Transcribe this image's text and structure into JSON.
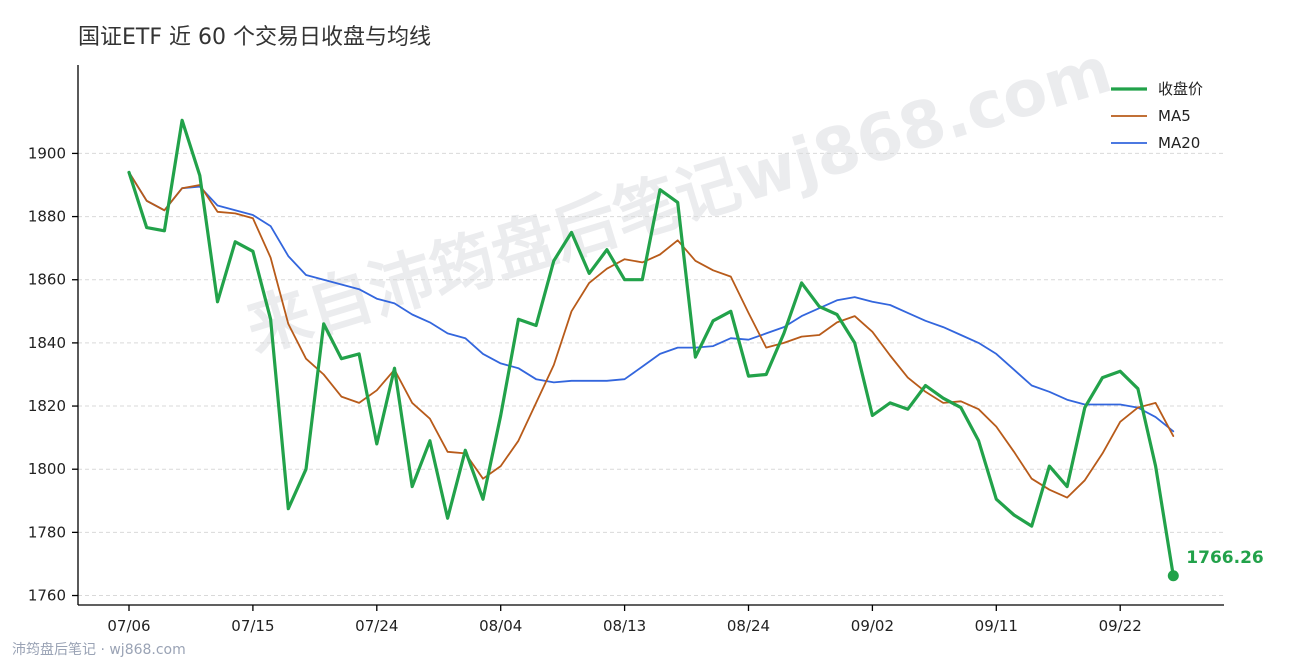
{
  "chart_data": {
    "type": "line",
    "title": "国证ETF 近 60 个交易日收盘与均线",
    "xlabel": "",
    "ylabel": "",
    "ylim": [
      1757,
      1928
    ],
    "yticks": [
      1760,
      1780,
      1800,
      1820,
      1840,
      1860,
      1880,
      1900
    ],
    "xticks": [
      {
        "index": 0,
        "label": "07/06"
      },
      {
        "index": 7,
        "label": "07/15"
      },
      {
        "index": 14,
        "label": "07/24"
      },
      {
        "index": 21,
        "label": "08/04"
      },
      {
        "index": 28,
        "label": "08/13"
      },
      {
        "index": 35,
        "label": "08/24"
      },
      {
        "index": 42,
        "label": "09/02"
      },
      {
        "index": 49,
        "label": "09/11"
      },
      {
        "index": 56,
        "label": "09/22"
      }
    ],
    "grid": "horizontal",
    "legend_position": "top-right",
    "series": [
      {
        "name": "收盘价",
        "color": "#22a24a",
        "values": [
          1894,
          1876.5,
          1875.5,
          1910.5,
          1893,
          1853,
          1872,
          1869,
          1847.5,
          1787.5,
          1800,
          1846,
          1835,
          1836.5,
          1808,
          1832,
          1794.5,
          1809,
          1784.5,
          1806,
          1790.5,
          1817,
          1847.5,
          1845.5,
          1866,
          1875,
          1862,
          1869.5,
          1860,
          1860,
          1888.5,
          1884.5,
          1835.5,
          1847,
          1850,
          1829.5,
          1830,
          1843,
          1859,
          1851.5,
          1849,
          1840,
          1817,
          1821,
          1819,
          1826.5,
          1822.5,
          1819.5,
          1809,
          1790.5,
          1785.5,
          1782,
          1801,
          1794.5,
          1819.5,
          1829,
          1831,
          1825.5,
          1801,
          1766.26
        ]
      },
      {
        "name": "MA5",
        "color": "#b85b1a",
        "values": [
          1894,
          1885,
          1882,
          1889,
          1890,
          1881.5,
          1881,
          1879.5,
          1867,
          1846,
          1835,
          1830,
          1823,
          1821,
          1825,
          1831.5,
          1821,
          1816,
          1805.5,
          1805,
          1797,
          1801,
          1809,
          1821,
          1833,
          1850,
          1859,
          1863.5,
          1866.5,
          1865.5,
          1868,
          1872.5,
          1866,
          1863,
          1861,
          1849.5,
          1838.5,
          1840,
          1842,
          1842.5,
          1846.5,
          1848.5,
          1843.5,
          1836,
          1829,
          1824.5,
          1821,
          1821.5,
          1819,
          1813.5,
          1805.5,
          1797,
          1793.5,
          1791,
          1796.5,
          1805,
          1815,
          1819.5,
          1821,
          1810.5
        ]
      },
      {
        "name": "MA20",
        "color": "#3366dd",
        "values": [
          1894,
          1885,
          1882,
          1889,
          1889.5,
          1883.5,
          1882,
          1880.5,
          1877,
          1867.5,
          1861.5,
          1860,
          1858.5,
          1857,
          1854,
          1852.5,
          1849,
          1846.5,
          1843,
          1841.5,
          1836.5,
          1833.5,
          1832,
          1828.5,
          1827.5,
          1828,
          1828,
          1828,
          1828.5,
          1832.5,
          1836.5,
          1838.5,
          1838.5,
          1839,
          1841.5,
          1841,
          1843,
          1845,
          1848.5,
          1851,
          1853.5,
          1854.5,
          1853,
          1852,
          1849.5,
          1847,
          1845,
          1842.5,
          1840,
          1836.5,
          1831.5,
          1826.5,
          1824.5,
          1822,
          1820.5,
          1820.5,
          1820.5,
          1819.5,
          1816.5,
          1812
        ]
      }
    ],
    "annotations": [
      {
        "index": 59,
        "text": "1766.26",
        "color": "#22a24a"
      }
    ]
  },
  "watermark": {
    "text": "来自沛筠盘后笔记wj868.com"
  },
  "footer": {
    "text": "沛筠盘后笔记 · wj868.com"
  }
}
